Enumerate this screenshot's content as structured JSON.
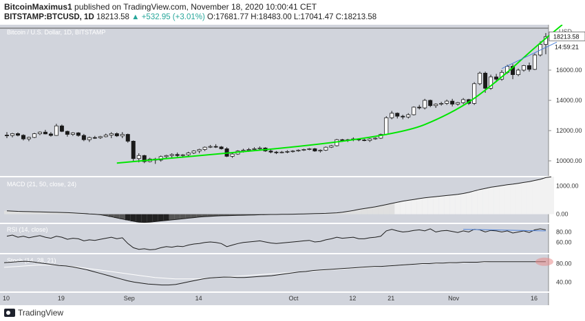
{
  "header": {
    "author": "BitcoinMaximus1",
    "published": "published on TradingView.com, November 18, 2020 10:00:41 CET",
    "symbol": "BITSTAMP:BTCUSD, 1D",
    "last": "18213.58",
    "change": "▲ +532.95 (+3.01%)",
    "ohlc": "O:17681.77 H:18483.00 L:17041.47 C:18213.58"
  },
  "footer": {
    "brand": "TradingView"
  },
  "colors": {
    "bg": "#d1d4dc",
    "up": "#ffffff",
    "down": "#1a1a1a",
    "green": "#00e600",
    "blue": "#4a7fd8",
    "macd": "#1a1a1a"
  },
  "chart_data": [
    {
      "type": "candlestick",
      "title": "Bitcoin / U.S. Dollar, 1D, BITSTAMP",
      "currency": "USD",
      "ylim": [
        9000,
        19000
      ],
      "yticks": [
        10000,
        12000,
        14000,
        16000
      ],
      "ytick_labels": [
        "10000.00",
        "12000.00",
        "14000.00",
        "16000.00"
      ],
      "last_price_label": "18213.58",
      "countdown_label": "14:59:21",
      "xlabels": [
        {
          "i": 0,
          "t": "10"
        },
        {
          "i": 10,
          "t": "19"
        },
        {
          "i": 22,
          "t": "Sep"
        },
        {
          "i": 35,
          "t": "14"
        },
        {
          "i": 52,
          "t": "Oct"
        },
        {
          "i": 63,
          "t": "12"
        },
        {
          "i": 70,
          "t": "21"
        },
        {
          "i": 81,
          "t": "Nov"
        },
        {
          "i": 96,
          "t": "16"
        }
      ],
      "candles": [
        [
          11700,
          11900,
          11500,
          11680
        ],
        [
          11680,
          11850,
          11550,
          11800
        ],
        [
          11800,
          11880,
          11620,
          11690
        ],
        [
          11690,
          11760,
          11350,
          11450
        ],
        [
          11450,
          11600,
          11300,
          11550
        ],
        [
          11550,
          11850,
          11500,
          11790
        ],
        [
          11790,
          11950,
          11700,
          11900
        ],
        [
          11900,
          12050,
          11750,
          11780
        ],
        [
          11780,
          11900,
          11600,
          11680
        ],
        [
          11680,
          12450,
          11650,
          12310
        ],
        [
          12310,
          12400,
          11900,
          11950
        ],
        [
          11950,
          12000,
          11600,
          11750
        ],
        [
          11750,
          11900,
          11650,
          11850
        ],
        [
          11850,
          11900,
          11600,
          11680
        ],
        [
          11680,
          11780,
          11300,
          11400
        ],
        [
          11400,
          11600,
          11250,
          11540
        ],
        [
          11540,
          11650,
          11450,
          11530
        ],
        [
          11530,
          11650,
          11450,
          11600
        ],
        [
          11600,
          11800,
          11550,
          11700
        ],
        [
          11700,
          11900,
          11500,
          11800
        ],
        [
          11800,
          11880,
          11580,
          11650
        ],
        [
          11650,
          11900,
          11500,
          11750
        ],
        [
          11750,
          11800,
          11200,
          11300
        ],
        [
          11300,
          11350,
          10000,
          10150
        ],
        [
          10150,
          10500,
          9900,
          10350
        ],
        [
          10350,
          10400,
          9850,
          9950
        ],
        [
          9950,
          10200,
          9900,
          10120
        ],
        [
          10120,
          10200,
          9800,
          10050
        ],
        [
          10050,
          10350,
          9950,
          10280
        ],
        [
          10280,
          10400,
          10150,
          10350
        ],
        [
          10350,
          10500,
          10200,
          10420
        ],
        [
          10420,
          10550,
          10250,
          10350
        ],
        [
          10350,
          10450,
          10200,
          10400
        ],
        [
          10400,
          10600,
          10300,
          10520
        ],
        [
          10520,
          10700,
          10450,
          10650
        ],
        [
          10650,
          10800,
          10500,
          10750
        ],
        [
          10750,
          10950,
          10650,
          10900
        ],
        [
          10900,
          11050,
          10850,
          10950
        ],
        [
          10950,
          11100,
          10850,
          10920
        ],
        [
          10920,
          10980,
          10750,
          10800
        ],
        [
          10800,
          10900,
          10250,
          10300
        ],
        [
          10300,
          10500,
          10200,
          10450
        ],
        [
          10450,
          10700,
          10400,
          10650
        ],
        [
          10650,
          10800,
          10550,
          10700
        ],
        [
          10700,
          10850,
          10600,
          10750
        ],
        [
          10750,
          10900,
          10650,
          10800
        ],
        [
          10800,
          10950,
          10700,
          10850
        ],
        [
          10850,
          10900,
          10600,
          10650
        ],
        [
          10650,
          10800,
          10500,
          10580
        ],
        [
          10580,
          10650,
          10450,
          10550
        ],
        [
          10550,
          10650,
          10500,
          10580
        ],
        [
          10580,
          10700,
          10500,
          10620
        ],
        [
          10620,
          10700,
          10550,
          10650
        ],
        [
          10650,
          10750,
          10600,
          10700
        ],
        [
          10700,
          10800,
          10650,
          10750
        ],
        [
          10750,
          10850,
          10700,
          10800
        ],
        [
          10800,
          10850,
          10600,
          10650
        ],
        [
          10650,
          10750,
          10550,
          10700
        ],
        [
          10700,
          10950,
          10650,
          10900
        ],
        [
          10900,
          11050,
          10850,
          11000
        ],
        [
          11000,
          11450,
          10950,
          11400
        ],
        [
          11400,
          11450,
          11250,
          11350
        ],
        [
          11350,
          11450,
          11250,
          11400
        ],
        [
          11400,
          11550,
          11300,
          11450
        ],
        [
          11450,
          11500,
          11300,
          11380
        ],
        [
          11380,
          11450,
          11300,
          11350
        ],
        [
          11350,
          11500,
          11250,
          11450
        ],
        [
          11450,
          11550,
          11400,
          11500
        ],
        [
          11500,
          11800,
          11450,
          11750
        ],
        [
          11750,
          12950,
          11700,
          12850
        ],
        [
          12850,
          13300,
          12750,
          13150
        ],
        [
          13150,
          13200,
          12800,
          12950
        ],
        [
          12950,
          13050,
          12750,
          12900
        ],
        [
          12900,
          13150,
          12800,
          13050
        ],
        [
          13050,
          13600,
          13000,
          13550
        ],
        [
          13550,
          13700,
          13400,
          13500
        ],
        [
          13500,
          14100,
          13400,
          14000
        ],
        [
          14000,
          14050,
          13550,
          13650
        ],
        [
          13650,
          13800,
          13500,
          13750
        ],
        [
          13750,
          13900,
          13650,
          13800
        ],
        [
          13800,
          14050,
          13700,
          13950
        ],
        [
          13950,
          14100,
          13600,
          13750
        ],
        [
          13750,
          13900,
          13650,
          13850
        ],
        [
          13850,
          14150,
          13750,
          14050
        ],
        [
          14050,
          14100,
          13700,
          13800
        ],
        [
          13800,
          15200,
          13700,
          15100
        ],
        [
          15100,
          15900,
          15000,
          15800
        ],
        [
          15800,
          15900,
          14500,
          14800
        ],
        [
          14800,
          15700,
          14700,
          15550
        ],
        [
          15550,
          15750,
          15200,
          15400
        ],
        [
          15400,
          16000,
          15300,
          15850
        ],
        [
          15850,
          16350,
          15750,
          16250
        ],
        [
          16250,
          16400,
          15400,
          15700
        ],
        [
          15700,
          16100,
          15600,
          16000
        ],
        [
          16000,
          16350,
          15900,
          16300
        ],
        [
          16300,
          16500,
          15900,
          16050
        ],
        [
          16050,
          17100,
          16000,
          17000
        ],
        [
          17000,
          17900,
          16900,
          17700
        ],
        [
          17700,
          18450,
          17050,
          18213
        ]
      ],
      "green_arc": [
        [
          20,
          9850
        ],
        [
          70,
          11500
        ],
        [
          82,
          13300
        ],
        [
          90,
          15500
        ],
        [
          96,
          17500
        ],
        [
          101,
          19000
        ]
      ],
      "blue_line": [
        [
          90,
          16100
        ],
        [
          100,
          17850
        ]
      ]
    },
    {
      "type": "line",
      "title": "MACD (21, 50, close, 24)",
      "ylim": [
        -300,
        1300
      ],
      "yticks": [
        0,
        1000
      ],
      "ytick_labels": [
        "0.00",
        "1000.00"
      ],
      "macd": [
        120,
        110,
        100,
        95,
        90,
        85,
        80,
        75,
        70,
        65,
        60,
        55,
        45,
        35,
        25,
        10,
        0,
        -20,
        -50,
        -90,
        -130,
        -170,
        -210,
        -250,
        -280,
        -290,
        -280,
        -260,
        -240,
        -220,
        -200,
        -180,
        -160,
        -140,
        -120,
        -100,
        -85,
        -75,
        -65,
        -55,
        -50,
        -45,
        -40,
        -35,
        -30,
        -25,
        -20,
        -15,
        -10,
        -8,
        -5,
        -3,
        0,
        5,
        10,
        15,
        20,
        25,
        30,
        40,
        50,
        70,
        100,
        130,
        170,
        200,
        230,
        260,
        300,
        340,
        380,
        420,
        460,
        490,
        520,
        550,
        580,
        600,
        620,
        640,
        660,
        680,
        700,
        730,
        770,
        820,
        870,
        910,
        950,
        980,
        1010,
        1040,
        1060,
        1090,
        1120,
        1150,
        1190,
        1230,
        1290,
        1320
      ]
    },
    {
      "type": "line",
      "title": "RSI (14, close)",
      "ylim": [
        40,
        95
      ],
      "yticks": [
        60,
        80
      ],
      "ytick_labels": [
        "60.00",
        "80.00"
      ],
      "rsi": [
        72,
        74,
        70,
        72,
        69,
        71,
        73,
        70,
        68,
        72,
        70,
        66,
        68,
        67,
        63,
        65,
        64,
        66,
        68,
        70,
        67,
        69,
        58,
        50,
        47,
        48,
        46,
        47,
        50,
        52,
        51,
        53,
        52,
        55,
        57,
        58,
        60,
        61,
        60,
        58,
        52,
        55,
        58,
        60,
        61,
        62,
        63,
        61,
        59,
        58,
        59,
        60,
        61,
        62,
        63,
        64,
        61,
        62,
        65,
        67,
        70,
        68,
        69,
        70,
        67,
        67,
        69,
        70,
        72,
        82,
        85,
        82,
        80,
        81,
        83,
        84,
        82,
        86,
        80,
        82,
        83,
        81,
        79,
        82,
        80,
        85,
        84,
        80,
        83,
        82,
        80,
        82,
        78,
        80,
        82,
        79,
        84,
        86,
        84
      ],
      "blue_line": [
        [
          83,
          85
        ],
        [
          98,
          82
        ]
      ]
    },
    {
      "type": "line",
      "title": "Stoch (14, 28, 21)",
      "ylim": [
        20,
        100
      ],
      "yticks": [
        40,
        80
      ],
      "ytick_labels": [
        "40.00",
        "80.00"
      ],
      "k": [
        82,
        83,
        84,
        85,
        84,
        82,
        80,
        78,
        76,
        75,
        73,
        70,
        67,
        63,
        59,
        55,
        51,
        47,
        43,
        40,
        38,
        36,
        35,
        34,
        34,
        35,
        38,
        41,
        44,
        47,
        49,
        50,
        51,
        51,
        50,
        50,
        51,
        52,
        53,
        54,
        56,
        58,
        60,
        62,
        63,
        65,
        66,
        67,
        68,
        69,
        70,
        71,
        72,
        73,
        74,
        74,
        75,
        76,
        77,
        78,
        79,
        80,
        80,
        81,
        81,
        82,
        82,
        83,
        83,
        83,
        84,
        84,
        84,
        84,
        84,
        84,
        84,
        84,
        84,
        84
      ],
      "d": [
        72,
        73,
        74,
        75,
        76,
        77,
        77,
        77,
        76,
        75,
        74,
        72,
        70,
        68,
        66,
        64,
        62,
        60,
        58,
        56,
        54,
        52,
        50,
        49,
        48,
        47,
        47,
        47,
        47,
        48,
        49,
        50,
        51,
        52,
        53,
        54,
        55,
        56,
        57,
        58,
        59,
        60,
        61,
        62,
        63,
        64,
        65,
        66,
        67,
        68,
        69,
        70,
        71,
        72,
        73,
        74,
        75,
        76,
        77,
        78,
        79,
        79,
        80,
        80,
        81,
        81,
        82,
        82,
        83,
        83,
        83,
        84,
        84,
        84,
        84,
        84,
        84,
        84,
        84,
        84
      ]
    }
  ]
}
